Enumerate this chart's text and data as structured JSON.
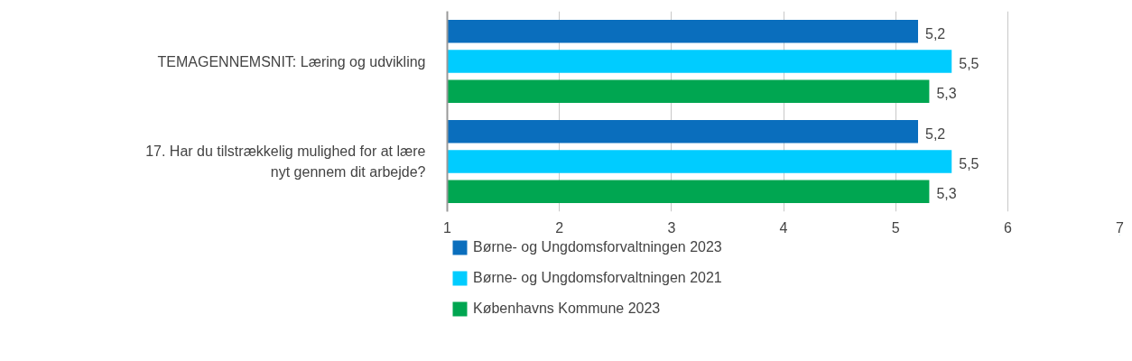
{
  "chart_data": {
    "type": "bar",
    "orientation": "horizontal",
    "categories": [
      "TEMAGENNEMSNIT: Læring og udvikling",
      "17. Har du tilstrækkelig mulighed for at lære nyt gennem dit arbejde?"
    ],
    "series": [
      {
        "name": "Børne- og Ungdomsforvaltningen 2023",
        "color": "#0a6ebd",
        "values": [
          5.2,
          5.2
        ],
        "value_labels": [
          "5,2",
          "5,2"
        ]
      },
      {
        "name": "Børne- og Ungdomsforvaltningen 2021",
        "color": "#00ccff",
        "values": [
          5.5,
          5.5
        ],
        "value_labels": [
          "5,5",
          "5,5"
        ]
      },
      {
        "name": "Københavns Kommune 2023",
        "color": "#00a651",
        "values": [
          5.3,
          5.3
        ],
        "value_labels": [
          "5,3",
          "5,3"
        ]
      }
    ],
    "xlim": [
      1,
      7
    ],
    "xticks": [
      1,
      2,
      3,
      4,
      5,
      6,
      7
    ],
    "grid": "x",
    "legend": "bottom"
  }
}
